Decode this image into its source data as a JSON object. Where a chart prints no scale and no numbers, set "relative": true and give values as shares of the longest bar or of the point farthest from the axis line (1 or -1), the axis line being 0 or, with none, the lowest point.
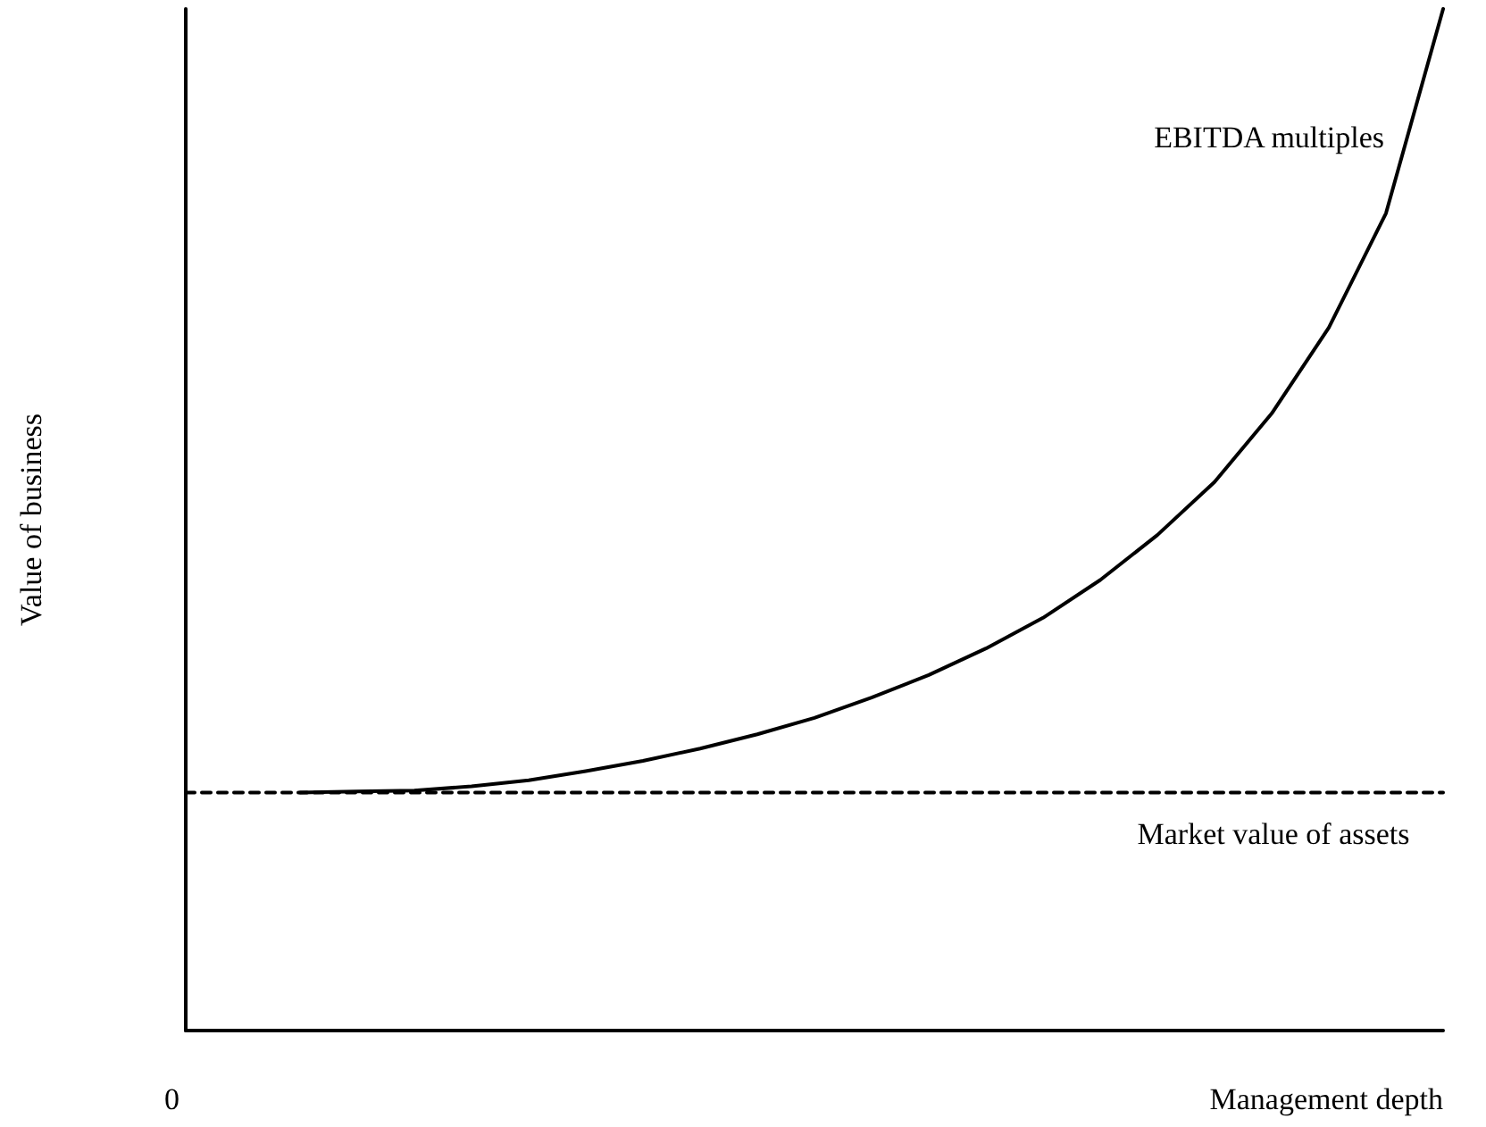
{
  "chart_data": {
    "type": "line",
    "relative": true,
    "xlabel": "Management depth",
    "ylabel": "Value of business",
    "annotations": [
      "0"
    ],
    "marker": "none",
    "grid": false,
    "legend": false,
    "categories": [
      null,
      null,
      null,
      null,
      null,
      null,
      null,
      null,
      null,
      null,
      null,
      null,
      null,
      null,
      null,
      null,
      null,
      null,
      null,
      null,
      null,
      null,
      null
    ],
    "series": [
      {
        "name": "EBITDA multiples",
        "color": "#000000",
        "line_style": "solid",
        "values": [
          null,
          null,
          0.233,
          0.234,
          0.235,
          0.239,
          0.245,
          0.254,
          0.264,
          0.276,
          0.29,
          0.306,
          0.326,
          0.348,
          0.374,
          0.404,
          0.441,
          0.485,
          0.537,
          0.604,
          0.688,
          0.8,
          1
        ]
      },
      {
        "name": "Market value of assets",
        "color": "#000000",
        "line_style": "dashed",
        "values": [
          0.233,
          0.233,
          0.233,
          0.233,
          0.233,
          0.233,
          0.233,
          0.233,
          0.233,
          0.233,
          0.233,
          0.233,
          0.233,
          0.233,
          0.233,
          0.233,
          0.233,
          0.233,
          0.233,
          0.233,
          0.233,
          0.233,
          0.233
        ]
      }
    ]
  }
}
